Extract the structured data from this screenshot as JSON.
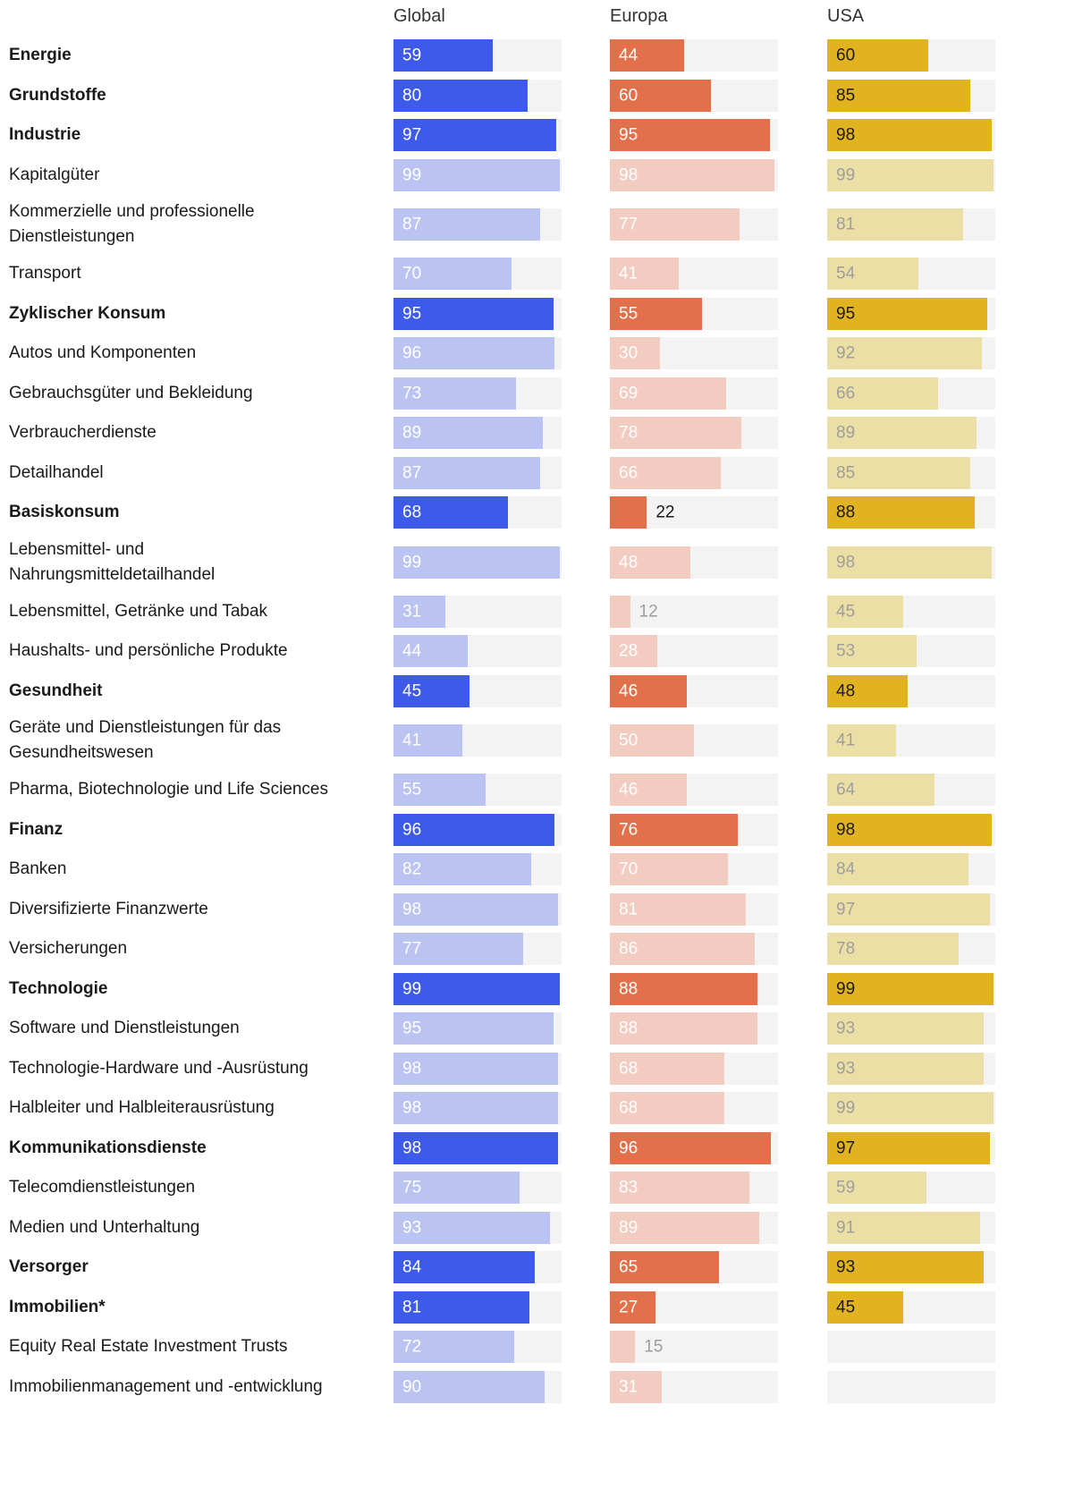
{
  "chart_data": {
    "type": "bar",
    "title": "",
    "columns": [
      "Global",
      "Europa",
      "USA"
    ],
    "value_range": [
      0,
      100
    ],
    "rows": [
      {
        "label": "Energie",
        "bold": true,
        "values": [
          59,
          44,
          60
        ]
      },
      {
        "label": "Grundstoffe",
        "bold": true,
        "values": [
          80,
          60,
          85
        ]
      },
      {
        "label": "Industrie",
        "bold": true,
        "values": [
          97,
          95,
          98
        ]
      },
      {
        "label": "Kapitalgüter",
        "bold": false,
        "values": [
          99,
          98,
          99
        ]
      },
      {
        "label": "Kommerzielle und professionelle\nDienstleistungen",
        "bold": false,
        "values": [
          87,
          77,
          81
        ]
      },
      {
        "label": "Transport",
        "bold": false,
        "values": [
          70,
          41,
          54
        ]
      },
      {
        "label": "Zyklischer Konsum",
        "bold": true,
        "values": [
          95,
          55,
          95
        ]
      },
      {
        "label": "Autos und Komponenten",
        "bold": false,
        "values": [
          96,
          30,
          92
        ]
      },
      {
        "label": "Gebrauchsgüter und Bekleidung",
        "bold": false,
        "values": [
          73,
          69,
          66
        ]
      },
      {
        "label": "Verbraucherdienste",
        "bold": false,
        "values": [
          89,
          78,
          89
        ]
      },
      {
        "label": "Detailhandel",
        "bold": false,
        "values": [
          87,
          66,
          85
        ]
      },
      {
        "label": "Basiskonsum",
        "bold": true,
        "values": [
          68,
          22,
          88
        ]
      },
      {
        "label": "Lebensmittel- und\nNahrungsmitteldetailhandel",
        "bold": false,
        "values": [
          99,
          48,
          98
        ]
      },
      {
        "label": "Lebensmittel, Getränke und Tabak",
        "bold": false,
        "values": [
          31,
          12,
          45
        ]
      },
      {
        "label": "Haushalts- und persönliche Produkte",
        "bold": false,
        "values": [
          44,
          28,
          53
        ]
      },
      {
        "label": "Gesundheit",
        "bold": true,
        "values": [
          45,
          46,
          48
        ]
      },
      {
        "label": "Geräte und Dienstleistungen für das\nGesundheitswesen",
        "bold": false,
        "values": [
          41,
          50,
          41
        ]
      },
      {
        "label": "Pharma, Biotechnologie und Life Sciences",
        "bold": false,
        "values": [
          55,
          46,
          64
        ]
      },
      {
        "label": "Finanz",
        "bold": true,
        "values": [
          96,
          76,
          98
        ]
      },
      {
        "label": "Banken",
        "bold": false,
        "values": [
          82,
          70,
          84
        ]
      },
      {
        "label": "Diversifizierte Finanzwerte",
        "bold": false,
        "values": [
          98,
          81,
          97
        ]
      },
      {
        "label": "Versicherungen",
        "bold": false,
        "values": [
          77,
          86,
          78
        ]
      },
      {
        "label": "Technologie",
        "bold": true,
        "values": [
          99,
          88,
          99
        ]
      },
      {
        "label": "Software und Dienstleistungen",
        "bold": false,
        "values": [
          95,
          88,
          93
        ]
      },
      {
        "label": "Technologie-Hardware und -Ausrüstung",
        "bold": false,
        "values": [
          98,
          68,
          93
        ]
      },
      {
        "label": "Halbleiter und Halbleiterausrüstung",
        "bold": false,
        "values": [
          98,
          68,
          99
        ]
      },
      {
        "label": "Kommunikationsdienste",
        "bold": true,
        "values": [
          98,
          96,
          97
        ]
      },
      {
        "label": "Telecomdienstleistungen",
        "bold": false,
        "values": [
          75,
          83,
          59
        ]
      },
      {
        "label": "Medien und Unterhaltung",
        "bold": false,
        "values": [
          93,
          89,
          91
        ]
      },
      {
        "label": "Versorger",
        "bold": true,
        "values": [
          84,
          65,
          93
        ]
      },
      {
        "label": "Immobilien*",
        "bold": true,
        "values": [
          81,
          27,
          45
        ]
      },
      {
        "label": "Equity Real Estate Investment Trusts",
        "bold": false,
        "values": [
          72,
          15,
          null
        ]
      },
      {
        "label": "Immobilienmanagement und -entwicklung",
        "bold": false,
        "values": [
          90,
          31,
          null
        ]
      }
    ]
  },
  "colors": {
    "global_main": "#3D5AE8",
    "global_sub": "#BAC3F1",
    "europa_main": "#E2714B",
    "europa_sub": "#F2CCC0",
    "usa_main": "#E2B321",
    "usa_sub": "#ECDFA5",
    "track": "#F3F3F3",
    "value_light": "#FFFFFF",
    "value_dark": "#1A1A1A",
    "value_muted": "#9E9E9E",
    "header_text": "#333333"
  }
}
